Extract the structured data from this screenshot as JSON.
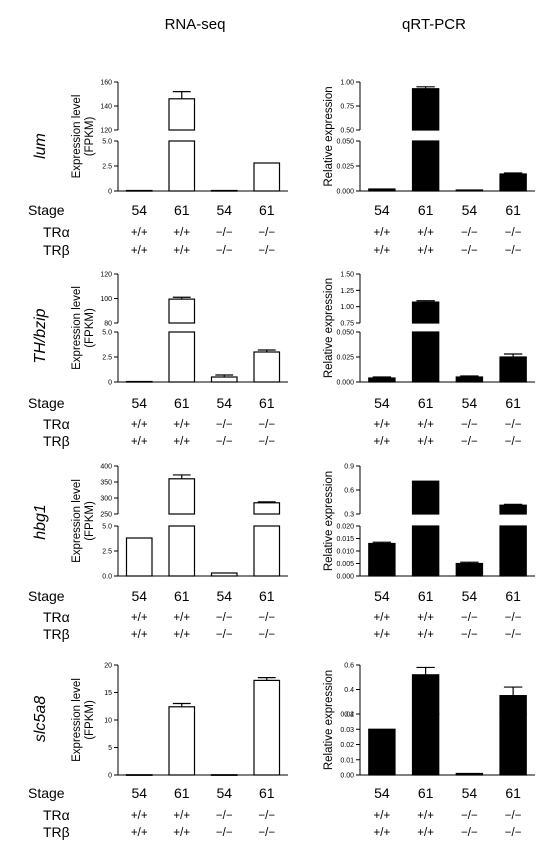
{
  "col_titles": [
    "RNA-seq",
    "qRT-PCR"
  ],
  "row_labels": [
    "Stage",
    "TRα",
    "TRβ"
  ],
  "stages": [
    "54",
    "61",
    "54",
    "61"
  ],
  "genotypes": [
    "+/+",
    "+/+",
    "−/−",
    "−/−"
  ],
  "chart_data": [
    {
      "type": "bar",
      "gene": "lum",
      "panel": "RNA-seq",
      "ylabel": [
        "Expression level",
        "(FPKM)"
      ],
      "filled": false,
      "categories": [
        "54 +/+ +/+",
        "61 +/+ +/+",
        "54 −/− −/−",
        "61 −/− −/−"
      ],
      "values": [
        0.05,
        146,
        0.05,
        2.8
      ],
      "errors": [
        0,
        6,
        0,
        0.05
      ],
      "broken_axis": {
        "lower": [
          0,
          5
        ],
        "upper": [
          120,
          160
        ]
      },
      "ticks_lower": [
        "0",
        "2.5",
        "5.0"
      ],
      "ticks_upper": [
        "120",
        "140",
        "160"
      ]
    },
    {
      "type": "bar",
      "gene": "lum",
      "panel": "qRT-PCR",
      "ylabel": [
        "Relative expression"
      ],
      "filled": true,
      "categories": [
        "54 +/+ +/+",
        "61 +/+ +/+",
        "54 −/− −/−",
        "61 −/− −/−"
      ],
      "values": [
        0.002,
        0.93,
        0.001,
        0.017
      ],
      "errors": [
        0.0005,
        0.02,
        0.0003,
        0.001
      ],
      "broken_axis": {
        "lower": [
          0,
          0.05
        ],
        "upper": [
          0.5,
          1.0
        ]
      },
      "ticks_lower": [
        "0.000",
        "0.025",
        "0.050"
      ],
      "ticks_upper": [
        "0.50",
        "0.75",
        "1.00"
      ]
    },
    {
      "type": "bar",
      "gene": "TH/bzip",
      "panel": "RNA-seq",
      "ylabel": [
        "Expression level",
        "(FPKM)"
      ],
      "filled": false,
      "categories": [
        "54 +/+ +/+",
        "61 +/+ +/+",
        "54 −/− −/−",
        "61 −/− −/−"
      ],
      "values": [
        0.05,
        99.5,
        0.5,
        3.0
      ],
      "errors": [
        0,
        1.5,
        0.2,
        0.2
      ],
      "broken_axis": {
        "lower": [
          0,
          5
        ],
        "upper": [
          80,
          120
        ]
      },
      "ticks_lower": [
        "0",
        "2.5",
        "5.0"
      ],
      "ticks_upper": [
        "80",
        "100",
        "120"
      ]
    },
    {
      "type": "bar",
      "gene": "TH/bzip",
      "panel": "qRT-PCR",
      "ylabel": [
        "Relative expression"
      ],
      "filled": true,
      "categories": [
        "54 +/+ +/+",
        "61 +/+ +/+",
        "54 −/− −/−",
        "61 −/− −/−"
      ],
      "values": [
        0.004,
        1.07,
        0.005,
        0.025
      ],
      "errors": [
        0.001,
        0.02,
        0.001,
        0.003
      ],
      "broken_axis": {
        "lower": [
          0,
          0.05
        ],
        "upper": [
          0.75,
          1.5
        ]
      },
      "ticks_lower": [
        "0.000",
        "0.025",
        "0.050"
      ],
      "ticks_upper": [
        "0.75",
        "1.00",
        "1.25",
        "1.50"
      ]
    },
    {
      "type": "bar",
      "gene": "hbg1",
      "panel": "RNA-seq",
      "ylabel": [
        "Expression level",
        "(FPKM)"
      ],
      "filled": false,
      "categories": [
        "54 +/+ +/+",
        "61 +/+ +/+",
        "54 −/− −/−",
        "61 −/− −/−"
      ],
      "values": [
        3.8,
        360,
        0.3,
        285
      ],
      "errors": [
        0.05,
        12,
        0.05,
        3
      ],
      "broken_axis": {
        "lower": [
          0,
          5
        ],
        "upper": [
          250,
          400
        ]
      },
      "ticks_lower": [
        "0.0",
        "2.5",
        "5.0"
      ],
      "ticks_upper": [
        "250",
        "300",
        "350",
        "400"
      ]
    },
    {
      "type": "bar",
      "gene": "hbg1",
      "panel": "qRT-PCR",
      "ylabel": [
        "Relative expression"
      ],
      "filled": true,
      "categories": [
        "54 +/+ +/+",
        "61 +/+ +/+",
        "54 −/− −/−",
        "61 −/− −/−"
      ],
      "values": [
        0.013,
        0.71,
        0.005,
        0.41
      ],
      "errors": [
        0.0005,
        0.005,
        0.0005,
        0.01
      ],
      "broken_axis": {
        "lower": [
          0,
          0.02
        ],
        "upper": [
          0.3,
          0.9
        ]
      },
      "ticks_lower": [
        "0.000",
        "0.005",
        "0.010",
        "0.015",
        "0.020"
      ],
      "ticks_upper": [
        "0.3",
        "0.6",
        "0.9"
      ]
    },
    {
      "type": "bar",
      "gene": "slc5a8",
      "panel": "RNA-seq",
      "ylabel": [
        "Expression level",
        "(FPKM)"
      ],
      "filled": false,
      "categories": [
        "54 +/+ +/+",
        "61 +/+ +/+",
        "54 −/− −/−",
        "61 −/− −/−"
      ],
      "values": [
        0.05,
        12.4,
        0.05,
        17.2
      ],
      "errors": [
        0,
        0.6,
        0,
        0.5
      ],
      "ylim": [
        0,
        20
      ],
      "ticks": [
        "0",
        "5",
        "10",
        "15",
        "20"
      ]
    },
    {
      "type": "bar",
      "gene": "slc5a8",
      "panel": "qRT-PCR",
      "ylabel": [
        "Relative expression"
      ],
      "filled": true,
      "categories": [
        "54 +/+ +/+",
        "61 +/+ +/+",
        "54 −/− −/−",
        "61 −/− −/−"
      ],
      "values": [
        0.03,
        0.52,
        0.001,
        0.35
      ],
      "errors": [
        0,
        0.06,
        0.0003,
        0.07
      ],
      "broken_axis": {
        "lower": [
          0,
          0.04
        ],
        "upper": [
          0.2,
          0.6
        ]
      },
      "ticks_lower": [
        "0.00",
        "0.01",
        "0.02",
        "0.03",
        "0.04"
      ],
      "ticks_upper": [
        "0.2",
        "0.4",
        "0.6"
      ]
    }
  ]
}
